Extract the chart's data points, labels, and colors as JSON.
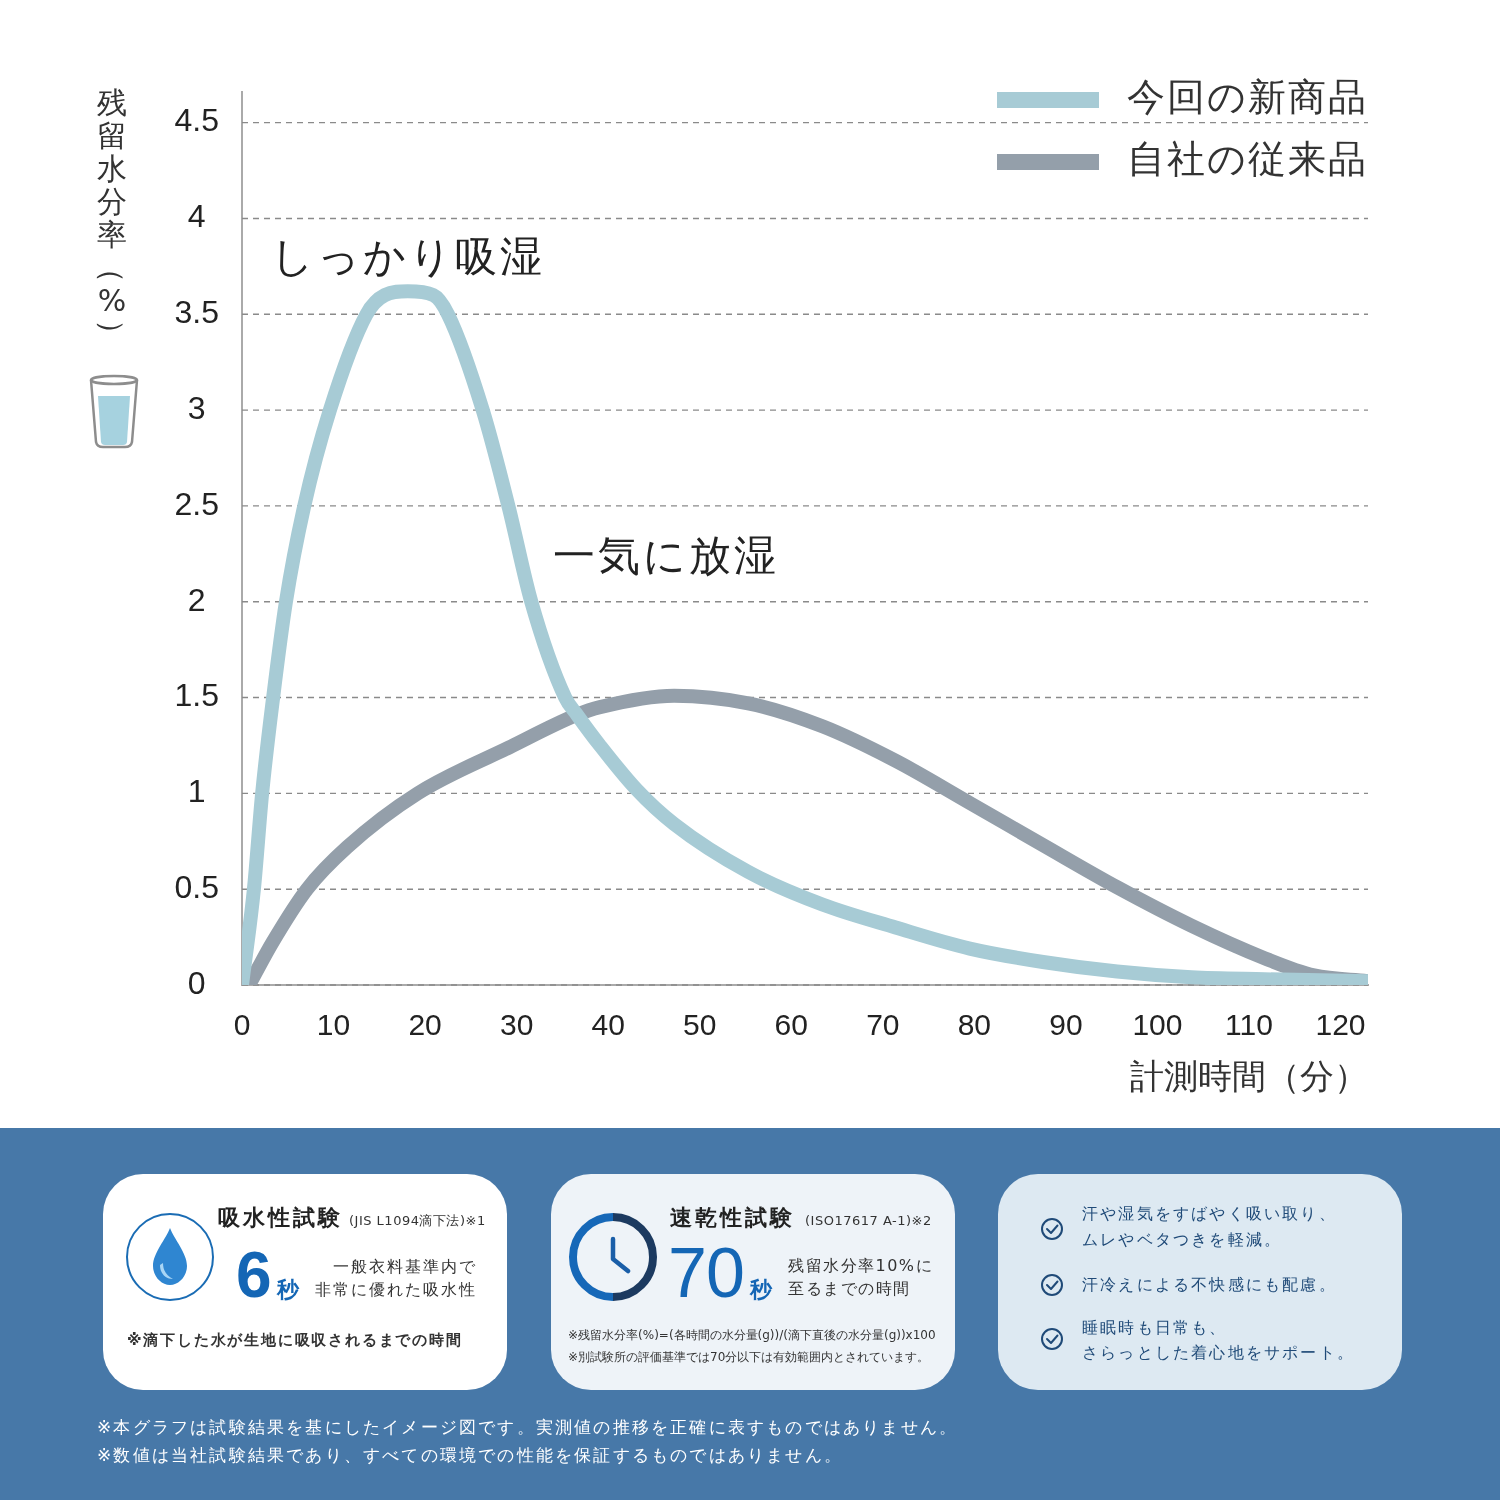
{
  "chart_data": {
    "type": "line",
    "xlabel": "計測時間（分）",
    "ylabel": "残留水分率（%）",
    "series": [
      {
        "name": "今回の新商品",
        "color": "#a7cbd5",
        "x": [
          0,
          1.3,
          2.2,
          3.4,
          4.8,
          6.8,
          9.6,
          13.6,
          15.6,
          18.1,
          20.9,
          22.5,
          26.3,
          29.1,
          31.6,
          35.3,
          36.6,
          39.1,
          43.1,
          47.2,
          55.3,
          63.4,
          71.4,
          79.5,
          87.5,
          95.6,
          103.7,
          111.7,
          123
        ],
        "values": [
          0,
          0.5,
          1,
          1.5,
          2,
          2.5,
          3,
          3.5,
          3.6,
          3.62,
          3.6,
          3.5,
          3,
          2.5,
          2,
          1.5,
          1.41,
          1.25,
          1.02,
          0.84,
          0.59,
          0.42,
          0.3,
          0.19,
          0.12,
          0.07,
          0.04,
          0.03,
          0.02
        ]
      },
      {
        "name": "自社の従来品",
        "color": "#949faa",
        "x": [
          1,
          3.3,
          7.1,
          11.5,
          19.2,
          29.2,
          36.6,
          39.1,
          47.2,
          55.3,
          63.4,
          71.4,
          79.5,
          87.5,
          95.6,
          103.7,
          111.7,
          117.1,
          123
        ],
        "values": [
          0.02,
          0.22,
          0.5,
          0.72,
          1,
          1.24,
          1.41,
          1.45,
          1.51,
          1.47,
          1.35,
          1.17,
          0.95,
          0.73,
          0.51,
          0.31,
          0.14,
          0.05,
          0.02
        ]
      }
    ],
    "xlim": [
      0,
      123
    ],
    "xticks": [
      0,
      10,
      20,
      30,
      40,
      50,
      60,
      70,
      80,
      90,
      100,
      110,
      120
    ],
    "ylim": [
      0,
      4.66
    ],
    "yticks": [
      0,
      0.5,
      1,
      1.5,
      2,
      2.5,
      3,
      3.5,
      4,
      4.5
    ],
    "grid": "y",
    "legend": "top right",
    "marker": "none",
    "annotations": [
      {
        "text": "しっかり吸湿",
        "x": 18.1,
        "y": 3.62
      },
      {
        "text": "一気に放湿",
        "x": 30.6,
        "y": 2.22
      },
      "吸水性試験",
      "(JIS L1094滴下法)※1",
      "6秒",
      "一般衣料基準内で",
      "非常に優れた吸水性",
      "※滴下した水が生地に吸収されるまでの時間",
      "速乾性試験",
      "(ISO17617 A-1)※2",
      "70秒",
      "残留水分率10%に",
      "至るまでの時間",
      "※残留水分率(%)=(各時間の水分量(g))/(滴下直後の水分量(g))x100",
      "※別試験所の評価基準では70分以下は有効範囲内とされています。",
      "汗や湿気をすばやく吸い取り、",
      "ムレやベタつきを軽減。",
      "汗冷えによる不快感にも配慮。",
      "睡眠時も日常も、",
      "さらっとした着心地をサポート。",
      "※本グラフは試験結果を基にしたイメージ図です。実測値の推移を正確に表すものではありません。",
      "※数値は当社試験結果であり、すべての環境での性能を保証するものではありません。"
    ]
  }
}
